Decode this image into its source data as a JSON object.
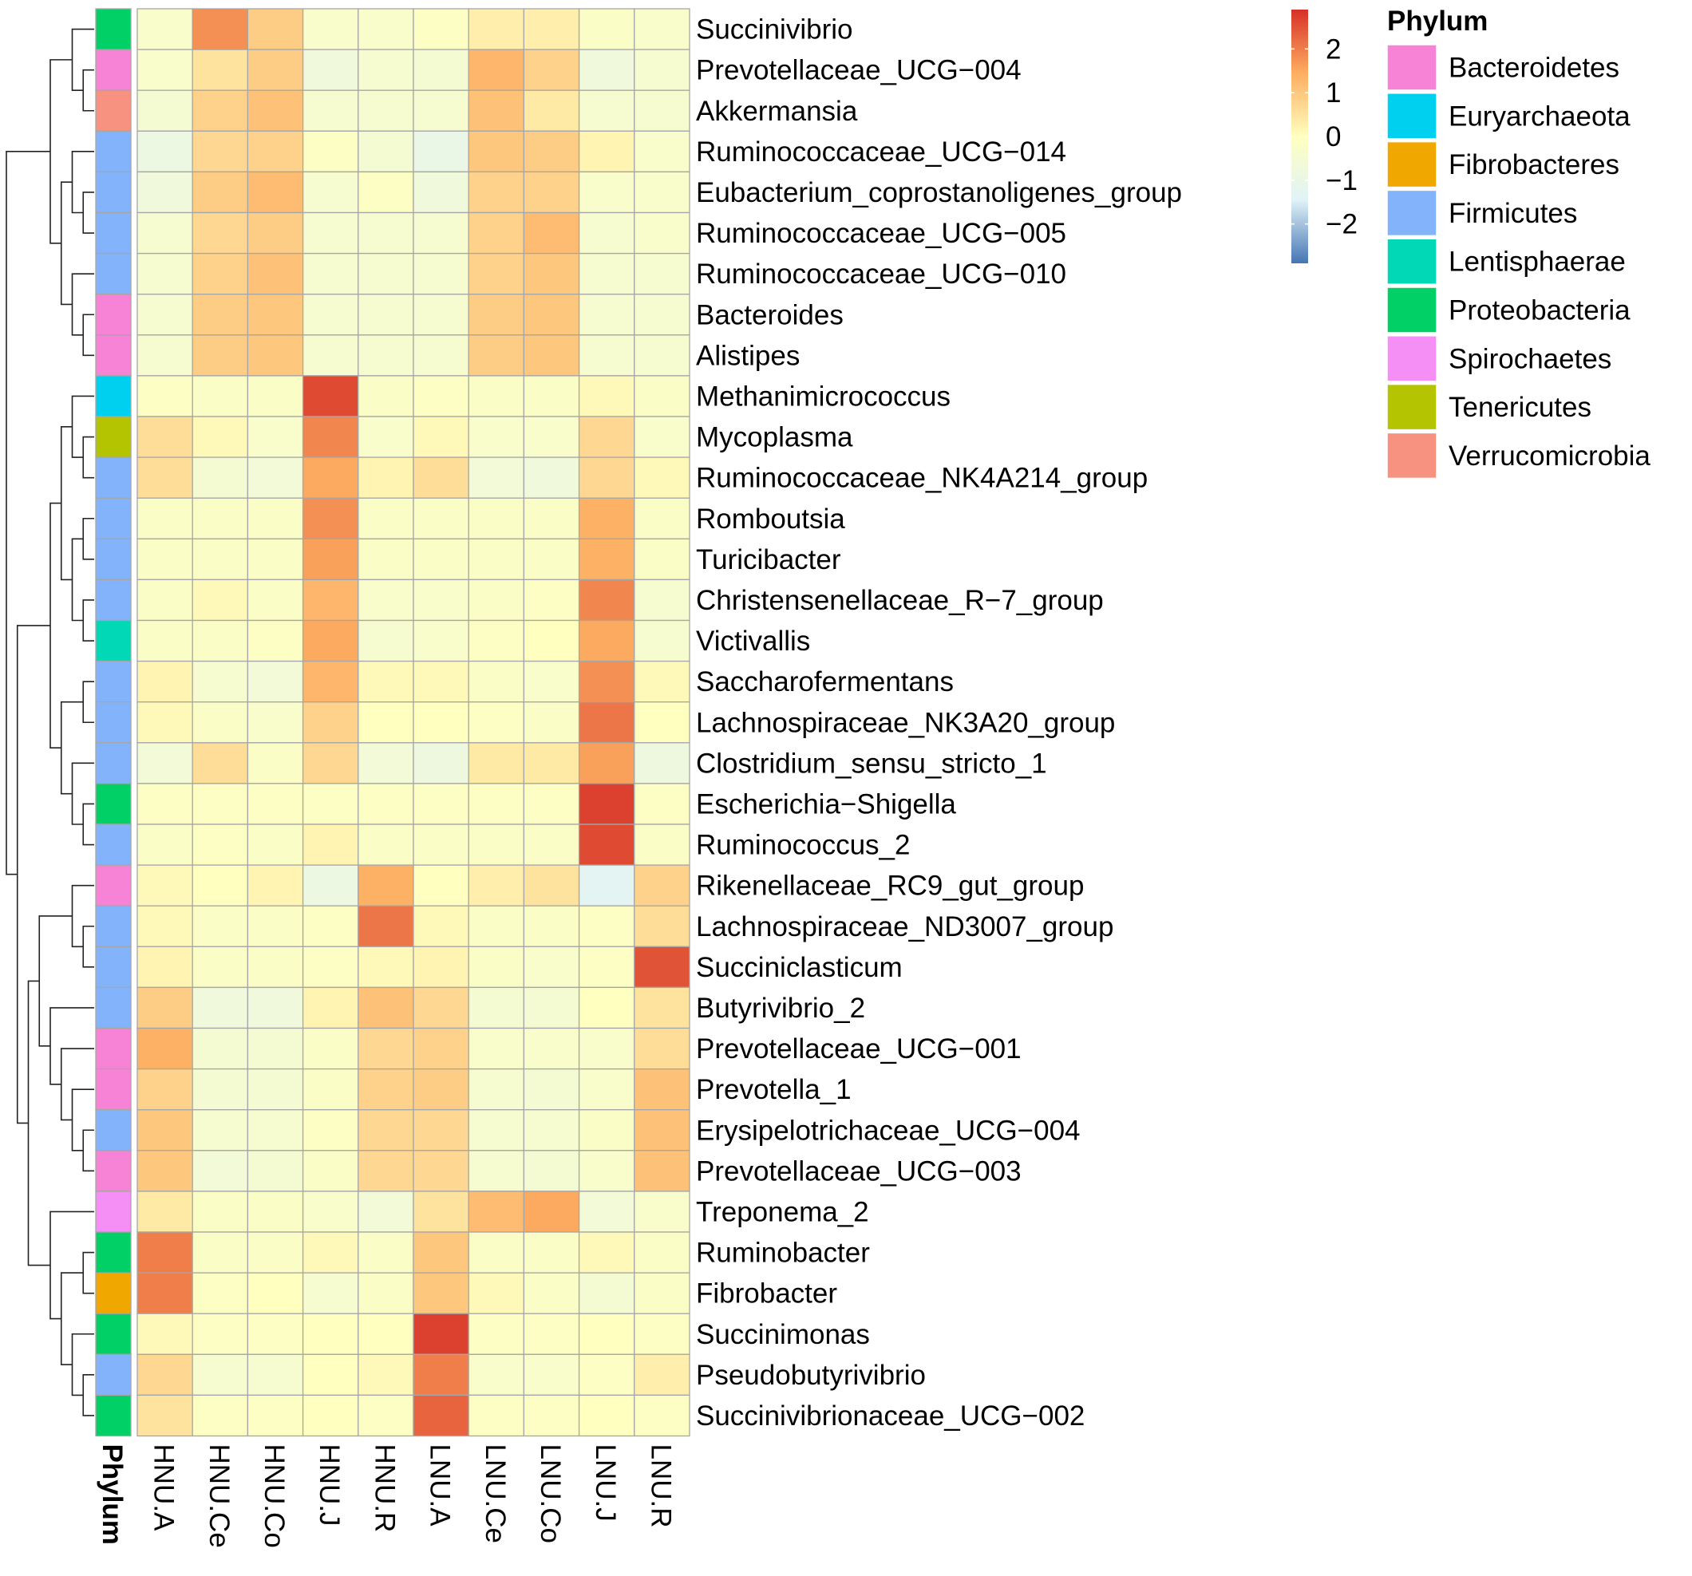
{
  "chart_data": {
    "type": "heatmap",
    "title": "",
    "columns": [
      "HNU.A",
      "HNU.Ce",
      "HNU.Co",
      "HNU.J",
      "HNU.R",
      "LNU.A",
      "LNU.Ce",
      "LNU.Co",
      "LNU.J",
      "LNU.R"
    ],
    "annotation_label": "Phylum",
    "rows": [
      {
        "name": "Succinivibrio",
        "phylum": "Proteobacteria",
        "values": [
          -0.3,
          1.8,
          0.9,
          -0.3,
          -0.3,
          -0.1,
          0.3,
          0.3,
          -0.2,
          -0.3
        ]
      },
      {
        "name": "Prevotellaceae_UCG−004",
        "phylum": "Bacteroidetes",
        "values": [
          -0.3,
          0.5,
          0.9,
          -0.7,
          -0.4,
          -0.5,
          1.3,
          0.8,
          -0.7,
          -0.4
        ]
      },
      {
        "name": "Akkermansia",
        "phylum": "Verrucomicrobia",
        "values": [
          -0.5,
          0.8,
          1.1,
          -0.4,
          -0.4,
          -0.4,
          1.1,
          0.4,
          -0.4,
          -0.4
        ]
      },
      {
        "name": "Ruminococcaceae_UCG−014",
        "phylum": "Firmicutes",
        "values": [
          -0.9,
          0.7,
          0.8,
          -0.1,
          -0.5,
          -1.0,
          1.0,
          0.9,
          0.2,
          -0.3
        ]
      },
      {
        "name": "Eubacterium_coprostanoligenes_group",
        "phylum": "Firmicutes",
        "values": [
          -0.7,
          0.9,
          1.2,
          -0.4,
          -0.1,
          -0.7,
          0.8,
          0.8,
          -0.3,
          -0.3
        ]
      },
      {
        "name": "Ruminococcaceae_UCG−005",
        "phylum": "Firmicutes",
        "values": [
          -0.4,
          0.7,
          0.9,
          -0.4,
          -0.4,
          -0.4,
          0.8,
          1.2,
          -0.4,
          -0.3
        ]
      },
      {
        "name": "Ruminococcaceae_UCG−010",
        "phylum": "Firmicutes",
        "values": [
          -0.4,
          0.8,
          1.1,
          -0.4,
          -0.4,
          -0.4,
          0.8,
          1.0,
          -0.4,
          -0.4
        ]
      },
      {
        "name": "Bacteroides",
        "phylum": "Bacteroidetes",
        "values": [
          -0.4,
          0.9,
          1.0,
          -0.4,
          -0.4,
          -0.4,
          0.9,
          1.0,
          -0.4,
          -0.4
        ]
      },
      {
        "name": "Alistipes",
        "phylum": "Bacteroidetes",
        "values": [
          -0.4,
          0.9,
          1.0,
          -0.4,
          -0.4,
          -0.4,
          0.9,
          1.0,
          -0.4,
          -0.4
        ]
      },
      {
        "name": "Methanimicrococcus",
        "phylum": "Euryarchaeota",
        "values": [
          -0.1,
          -0.2,
          -0.2,
          2.6,
          -0.2,
          -0.1,
          -0.2,
          -0.2,
          0.1,
          -0.2
        ]
      },
      {
        "name": "Mycoplasma",
        "phylum": "Tenericutes",
        "values": [
          0.6,
          0.1,
          -0.3,
          1.9,
          -0.3,
          0.1,
          -0.3,
          -0.3,
          0.7,
          -0.3
        ]
      },
      {
        "name": "Ruminococcaceae_NK4A214_group",
        "phylum": "Firmicutes",
        "values": [
          0.6,
          -0.5,
          -0.6,
          1.5,
          0.2,
          0.6,
          -0.6,
          -0.7,
          0.7,
          0.1
        ]
      },
      {
        "name": "Romboutsia",
        "phylum": "Firmicutes",
        "values": [
          -0.2,
          -0.2,
          -0.2,
          1.8,
          -0.2,
          -0.2,
          -0.2,
          -0.2,
          1.4,
          -0.2
        ]
      },
      {
        "name": "Turicibacter",
        "phylum": "Firmicutes",
        "values": [
          -0.2,
          -0.2,
          -0.2,
          1.6,
          -0.2,
          -0.2,
          -0.2,
          -0.2,
          1.4,
          -0.2
        ]
      },
      {
        "name": "Christensenellaceae_R−7_group",
        "phylum": "Firmicutes",
        "values": [
          -0.2,
          0.1,
          -0.2,
          1.3,
          -0.3,
          -0.3,
          -0.2,
          -0.1,
          1.9,
          -0.4
        ]
      },
      {
        "name": "Victivallis",
        "phylum": "Lentisphaerae",
        "values": [
          -0.2,
          -0.2,
          -0.1,
          1.5,
          -0.4,
          -0.3,
          -0.1,
          0.0,
          1.5,
          -0.4
        ]
      },
      {
        "name": "Saccharofermentans",
        "phylum": "Firmicutes",
        "values": [
          0.2,
          -0.4,
          -0.6,
          1.3,
          0.1,
          0.1,
          -0.2,
          -0.3,
          1.8,
          0.1
        ]
      },
      {
        "name": "Lachnospiraceae_NK3A20_group",
        "phylum": "Firmicutes",
        "values": [
          0.1,
          -0.2,
          -0.3,
          0.8,
          0.0,
          0.0,
          -0.1,
          -0.2,
          2.1,
          0.0
        ]
      },
      {
        "name": "Clostridium_sensu_stricto_1",
        "phylum": "Firmicutes",
        "values": [
          -0.6,
          0.6,
          -0.2,
          0.7,
          -0.6,
          -0.8,
          0.4,
          0.4,
          1.6,
          -0.8
        ]
      },
      {
        "name": "Escherichia−Shigella",
        "phylum": "Proteobacteria",
        "values": [
          -0.1,
          -0.1,
          -0.1,
          -0.1,
          -0.1,
          -0.1,
          -0.1,
          -0.1,
          2.7,
          -0.1
        ]
      },
      {
        "name": "Ruminococcus_2",
        "phylum": "Firmicutes",
        "values": [
          -0.2,
          -0.1,
          -0.2,
          0.2,
          -0.2,
          -0.2,
          -0.2,
          -0.2,
          2.6,
          -0.2
        ]
      },
      {
        "name": "Rikenellaceae_RC9_gut_group",
        "phylum": "Bacteroidetes",
        "values": [
          0.1,
          0.0,
          0.2,
          -0.9,
          1.4,
          0.0,
          0.3,
          0.5,
          -1.3,
          0.8
        ]
      },
      {
        "name": "Lachnospiraceae_ND3007_group",
        "phylum": "Firmicutes",
        "values": [
          0.1,
          -0.2,
          -0.2,
          -0.1,
          2.1,
          0.1,
          -0.2,
          -0.2,
          -0.1,
          0.6
        ]
      },
      {
        "name": "Succiniclasticum",
        "phylum": "Firmicutes",
        "values": [
          0.2,
          -0.2,
          -0.2,
          -0.1,
          0.1,
          0.2,
          -0.2,
          -0.3,
          -0.1,
          2.5
        ]
      },
      {
        "name": "Butyrivibrio_2",
        "phylum": "Firmicutes",
        "values": [
          0.9,
          -0.7,
          -0.7,
          0.2,
          1.1,
          0.7,
          -0.5,
          -0.5,
          0.0,
          0.5
        ]
      },
      {
        "name": "Prevotellaceae_UCG−001",
        "phylum": "Bacteroidetes",
        "values": [
          1.4,
          -0.5,
          -0.5,
          -0.2,
          0.7,
          0.8,
          -0.3,
          -0.3,
          -0.3,
          0.6
        ]
      },
      {
        "name": "Prevotella_1",
        "phylum": "Bacteroidetes",
        "values": [
          0.8,
          -0.5,
          -0.5,
          -0.2,
          0.8,
          0.9,
          -0.4,
          -0.5,
          -0.3,
          1.1
        ]
      },
      {
        "name": "Erysipelotrichaceae_UCG−004",
        "phylum": "Firmicutes",
        "values": [
          1.0,
          -0.4,
          -0.4,
          -0.1,
          0.7,
          0.7,
          -0.4,
          -0.4,
          -0.2,
          1.1
        ]
      },
      {
        "name": "Prevotellaceae_UCG−003",
        "phylum": "Bacteroidetes",
        "values": [
          1.0,
          -0.6,
          -0.5,
          -0.2,
          0.7,
          0.7,
          -0.4,
          -0.5,
          -0.3,
          1.1
        ]
      },
      {
        "name": "Treponema_2",
        "phylum": "Spirochaetes",
        "values": [
          0.4,
          -0.2,
          -0.2,
          -0.3,
          -0.6,
          0.5,
          1.2,
          1.5,
          -0.6,
          -0.3
        ]
      },
      {
        "name": "Ruminobacter",
        "phylum": "Proteobacteria",
        "values": [
          2.0,
          -0.2,
          -0.2,
          0.1,
          -0.2,
          1.0,
          -0.2,
          -0.2,
          0.1,
          -0.2
        ]
      },
      {
        "name": "Fibrobacter",
        "phylum": "Fibrobacteres",
        "values": [
          2.0,
          -0.1,
          0.0,
          -0.4,
          -0.2,
          1.0,
          0.1,
          -0.2,
          -0.5,
          -0.2
        ]
      },
      {
        "name": "Succinimonas",
        "phylum": "Proteobacteria",
        "values": [
          0.1,
          -0.1,
          -0.1,
          0.0,
          0.0,
          2.7,
          -0.1,
          -0.1,
          0.0,
          -0.1
        ]
      },
      {
        "name": "Pseudobutyrivibrio",
        "phylum": "Firmicutes",
        "values": [
          0.7,
          -0.4,
          -0.4,
          0.0,
          0.1,
          2.0,
          -0.3,
          -0.3,
          -0.1,
          0.3
        ]
      },
      {
        "name": "Succinivibrionaceae_UCG−002",
        "phylum": "Proteobacteria",
        "values": [
          0.5,
          -0.1,
          -0.1,
          0.0,
          -0.1,
          2.3,
          -0.1,
          -0.1,
          0.0,
          -0.1
        ]
      }
    ],
    "color_scale": {
      "min": -2.9,
      "max": 2.9,
      "stops": [
        "#4575b4",
        "#e0f3f8",
        "#ffffbf",
        "#fdae61",
        "#d73027"
      ],
      "ticks": [
        2,
        1,
        0,
        -1,
        -2
      ],
      "tick_labels": [
        "2",
        "1",
        "0",
        "−1",
        "−2"
      ]
    },
    "legend": {
      "title": "Phylum",
      "entries": [
        {
          "label": "Bacteroidetes",
          "color": "#f783d6"
        },
        {
          "label": "Euryarchaeota",
          "color": "#00d0ef"
        },
        {
          "label": "Fibrobacteres",
          "color": "#f0a800"
        },
        {
          "label": "Firmicutes",
          "color": "#83b4fb"
        },
        {
          "label": "Lentisphaerae",
          "color": "#00d8b6"
        },
        {
          "label": "Proteobacteria",
          "color": "#00d065"
        },
        {
          "label": "Spirochaetes",
          "color": "#f58ef5"
        },
        {
          "label": "Tenericutes",
          "color": "#b4c400"
        },
        {
          "label": "Verrucomicrobia",
          "color": "#f89280"
        }
      ]
    },
    "dendrogram": "hierarchical clustering of rows"
  }
}
